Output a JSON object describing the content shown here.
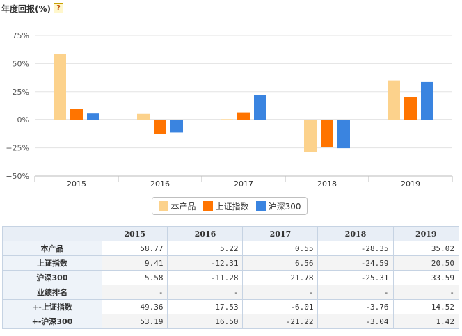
{
  "header": {
    "title": "年度回报(%)",
    "help_glyph": "?"
  },
  "chart_data": {
    "type": "bar",
    "categories": [
      "2015",
      "2016",
      "2017",
      "2018",
      "2019"
    ],
    "series": [
      {
        "name": "本产品",
        "color": "#fcd28c",
        "values": [
          58.77,
          5.22,
          0.55,
          -28.35,
          35.02
        ]
      },
      {
        "name": "上证指数",
        "color": "#ff7400",
        "values": [
          9.41,
          -12.31,
          6.56,
          -24.59,
          20.5
        ]
      },
      {
        "name": "沪深300",
        "color": "#3a84e0",
        "values": [
          5.58,
          -11.28,
          21.78,
          -25.31,
          33.59
        ]
      }
    ],
    "ylim": [
      -50,
      75
    ],
    "yticks": [
      75,
      50,
      25,
      0,
      -25,
      -50
    ],
    "ytick_labels": [
      "75%",
      "50%",
      "25%",
      "0%",
      "−25%",
      "−50%"
    ],
    "grid": true,
    "legend_position": "bottom-center"
  },
  "table": {
    "columns": [
      "",
      "2015",
      "2016",
      "2017",
      "2018",
      "2019"
    ],
    "rows": [
      {
        "label": "本产品",
        "cells": [
          "58.77",
          "5.22",
          "0.55",
          "-28.35",
          "35.02"
        ]
      },
      {
        "label": "上证指数",
        "cells": [
          "9.41",
          "-12.31",
          "6.56",
          "-24.59",
          "20.50"
        ]
      },
      {
        "label": "沪深300",
        "cells": [
          "5.58",
          "-11.28",
          "21.78",
          "-25.31",
          "33.59"
        ]
      },
      {
        "label": "业绩排名",
        "cells": [
          "-",
          "-",
          "-",
          "-",
          "-"
        ]
      },
      {
        "label": "+-上证指数",
        "cells": [
          "49.36",
          "17.53",
          "-6.01",
          "-3.76",
          "14.52"
        ]
      },
      {
        "label": "+-沪深300",
        "cells": [
          "53.19",
          "16.50",
          "-21.22",
          "-3.04",
          "1.42"
        ]
      }
    ]
  }
}
